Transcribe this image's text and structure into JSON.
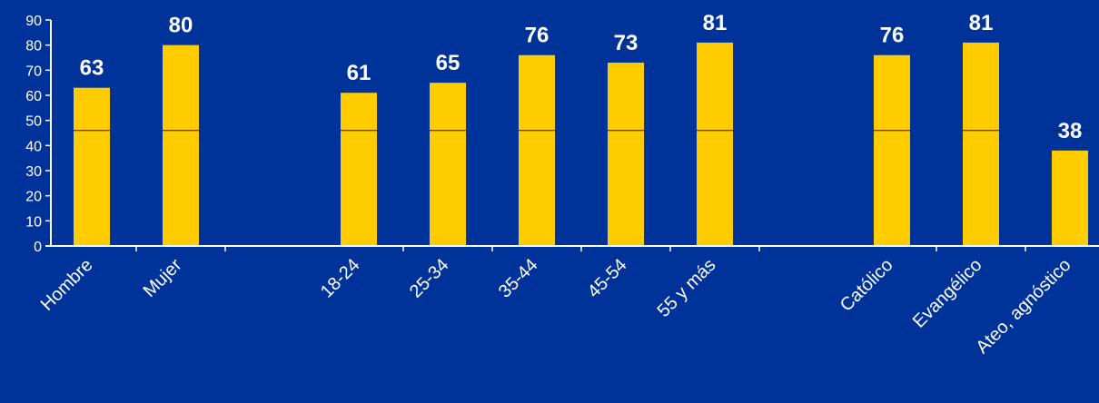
{
  "colors": {
    "background": "#003399",
    "bar": "#FFCC00",
    "axis": "#ffffff",
    "text": "#ffffff",
    "bar_stripe": "#1a1a1a"
  },
  "chart_data": {
    "type": "bar",
    "title": "",
    "xlabel": "",
    "ylabel": "",
    "ylim": [
      0,
      90
    ],
    "yticks": [
      0,
      10,
      20,
      30,
      40,
      50,
      60,
      70,
      80,
      90
    ],
    "grid": false,
    "legend": "none",
    "groups": [
      {
        "categories": [
          "Hombre",
          "Mujer"
        ],
        "values": [
          63,
          80
        ]
      },
      {
        "categories": [
          "18-24",
          "25-34",
          "35-44",
          "45-54",
          "55 y más"
        ],
        "values": [
          61,
          65,
          76,
          73,
          81
        ]
      },
      {
        "categories": [
          "Católico",
          "Evangélico",
          "Ateo, agnóstico"
        ],
        "values": [
          76,
          81,
          38
        ]
      }
    ],
    "categories": [
      "Hombre",
      "Mujer",
      "18-24",
      "25-34",
      "35-44",
      "45-54",
      "55 y más",
      "Católico",
      "Evangélico",
      "Ateo, agnóstico"
    ],
    "values": [
      63,
      80,
      61,
      65,
      76,
      73,
      81,
      76,
      81,
      38
    ]
  }
}
